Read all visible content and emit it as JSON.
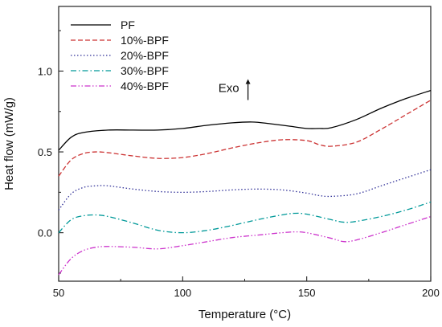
{
  "chart_data": {
    "type": "line",
    "xlabel": "Temperature (°C)",
    "ylabel": "Heat flow (mW/g)",
    "xlim": [
      50,
      200
    ],
    "ylim": [
      -0.3,
      1.4
    ],
    "x_ticks": [
      50,
      100,
      150,
      200
    ],
    "y_ticks": [
      0.0,
      0.5,
      1.0
    ],
    "y_tick_labels": [
      "0.0",
      "0.5",
      "1.0"
    ],
    "grid": false,
    "legend_position": "top-left",
    "annotation": {
      "text": "Exo",
      "arrow": "up",
      "x": 126,
      "y": 0.97
    },
    "series": [
      {
        "name": "PF",
        "color": "#000000",
        "dash": "solid",
        "x": [
          50,
          55,
          60,
          70,
          80,
          90,
          100,
          110,
          120,
          128,
          135,
          145,
          150,
          155,
          160,
          170,
          180,
          190,
          200
        ],
        "y": [
          0.51,
          0.59,
          0.62,
          0.635,
          0.635,
          0.635,
          0.645,
          0.665,
          0.68,
          0.685,
          0.675,
          0.655,
          0.645,
          0.645,
          0.65,
          0.7,
          0.77,
          0.83,
          0.88
        ]
      },
      {
        "name": "10%-BPF",
        "color": "#cc3333",
        "dash": "dashed",
        "x": [
          50,
          55,
          60,
          65,
          70,
          80,
          90,
          100,
          110,
          120,
          130,
          140,
          150,
          155,
          160,
          170,
          180,
          190,
          200
        ],
        "y": [
          0.35,
          0.45,
          0.49,
          0.5,
          0.495,
          0.475,
          0.46,
          0.465,
          0.49,
          0.525,
          0.555,
          0.575,
          0.57,
          0.545,
          0.535,
          0.56,
          0.64,
          0.73,
          0.82
        ]
      },
      {
        "name": "20%-BPF",
        "color": "#333399",
        "dash": "dotted",
        "x": [
          50,
          55,
          60,
          65,
          70,
          80,
          90,
          100,
          110,
          120,
          130,
          140,
          150,
          155,
          160,
          170,
          180,
          190,
          200
        ],
        "y": [
          0.14,
          0.24,
          0.28,
          0.29,
          0.29,
          0.27,
          0.255,
          0.25,
          0.255,
          0.265,
          0.27,
          0.265,
          0.245,
          0.23,
          0.225,
          0.24,
          0.29,
          0.34,
          0.39
        ]
      },
      {
        "name": "30%-BPF",
        "color": "#009999",
        "dash": "dashdot",
        "x": [
          50,
          55,
          60,
          65,
          70,
          80,
          90,
          100,
          110,
          120,
          130,
          140,
          145,
          150,
          160,
          165,
          170,
          180,
          190,
          200
        ],
        "y": [
          0.0,
          0.08,
          0.105,
          0.11,
          0.1,
          0.06,
          0.015,
          0.0,
          0.015,
          0.045,
          0.08,
          0.11,
          0.12,
          0.115,
          0.08,
          0.065,
          0.07,
          0.1,
          0.14,
          0.19
        ]
      },
      {
        "name": "40%-BPF",
        "color": "#cc33cc",
        "dash": "dashdotdot",
        "x": [
          50,
          55,
          60,
          65,
          70,
          80,
          90,
          100,
          110,
          120,
          130,
          140,
          145,
          150,
          160,
          165,
          170,
          180,
          190,
          200
        ],
        "y": [
          -0.26,
          -0.16,
          -0.11,
          -0.09,
          -0.085,
          -0.09,
          -0.1,
          -0.08,
          -0.055,
          -0.03,
          -0.015,
          0.0,
          0.005,
          0.0,
          -0.035,
          -0.055,
          -0.045,
          0.0,
          0.05,
          0.1
        ]
      }
    ]
  }
}
